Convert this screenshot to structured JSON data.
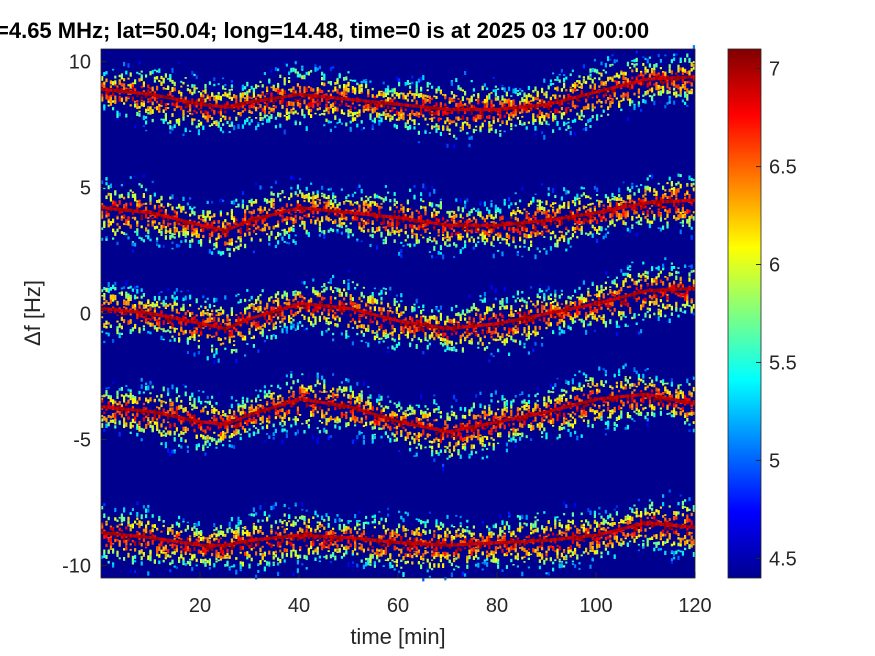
{
  "chart_data": {
    "type": "heatmap",
    "title": "=4.65 MHz;  lat=50.04; long=14.48, time=0 is at 2025 03 17 00:00",
    "xlabel": "time [min]",
    "ylabel": "Δf [Hz]",
    "xlim": [
      0,
      120
    ],
    "ylim": [
      -10.5,
      10.5
    ],
    "xticks": [
      20,
      40,
      60,
      80,
      100,
      120
    ],
    "yticks": [
      -10,
      -5,
      0,
      5,
      10
    ],
    "colorbar": {
      "colormap": "jet",
      "clim": [
        4.4,
        7.1
      ],
      "ticks": [
        "4.5",
        "5",
        "5.5",
        "6",
        "6.5",
        "7"
      ]
    },
    "background_color": "#00008f",
    "traces": [
      {
        "time": [
          0,
          10,
          20,
          25,
          30,
          40,
          50,
          60,
          70,
          80,
          90,
          100,
          110,
          120
        ],
        "df": [
          8.9,
          8.7,
          8.3,
          8.2,
          8.4,
          8.7,
          8.5,
          8.3,
          8.1,
          8.1,
          8.3,
          8.8,
          9.3,
          9.4
        ]
      },
      {
        "time": [
          0,
          10,
          20,
          25,
          30,
          40,
          50,
          60,
          70,
          80,
          90,
          100,
          110,
          120
        ],
        "df": [
          4.2,
          4.0,
          3.5,
          3.3,
          3.7,
          4.2,
          4.0,
          3.8,
          3.5,
          3.5,
          3.7,
          4.0,
          4.4,
          4.5
        ]
      },
      {
        "time": [
          0,
          10,
          20,
          25,
          30,
          40,
          50,
          60,
          70,
          80,
          90,
          100,
          110,
          120
        ],
        "df": [
          0.2,
          0.0,
          -0.4,
          -0.6,
          -0.2,
          0.4,
          0.2,
          -0.3,
          -0.6,
          -0.4,
          0.0,
          0.4,
          0.9,
          1.0
        ]
      },
      {
        "time": [
          0,
          10,
          20,
          25,
          30,
          40,
          50,
          60,
          70,
          80,
          90,
          100,
          110,
          120
        ],
        "df": [
          -3.7,
          -3.9,
          -4.3,
          -4.4,
          -4.0,
          -3.4,
          -3.7,
          -4.3,
          -4.7,
          -4.3,
          -3.9,
          -3.4,
          -3.2,
          -3.6
        ]
      },
      {
        "time": [
          0,
          10,
          20,
          25,
          30,
          40,
          50,
          60,
          70,
          80,
          90,
          100,
          110,
          120
        ],
        "df": [
          -8.7,
          -8.9,
          -9.2,
          -9.2,
          -9.0,
          -8.8,
          -8.9,
          -9.1,
          -9.2,
          -9.1,
          -9.0,
          -8.8,
          -8.3,
          -8.5
        ]
      }
    ]
  }
}
